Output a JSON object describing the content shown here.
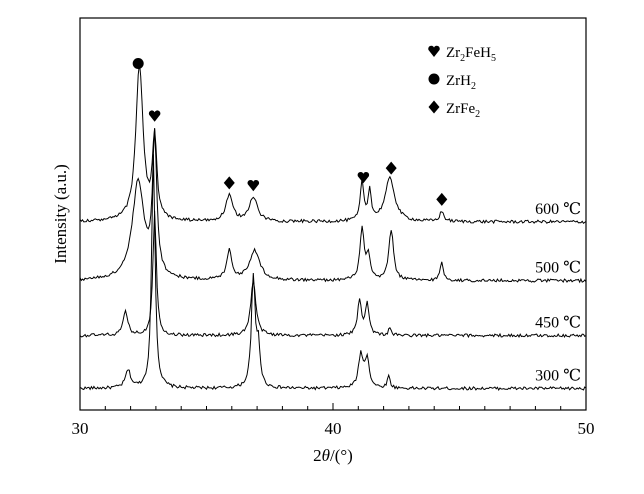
{
  "chart_data": {
    "type": "line",
    "title": "",
    "xlabel_parts": [
      "2",
      "θ",
      "/(°)"
    ],
    "ylabel": "Intensity (a.u.)",
    "xlim": [
      30,
      50
    ],
    "xticks": [
      30,
      40,
      50
    ],
    "grid": false,
    "legend": {
      "placement": "top-right",
      "entries": [
        {
          "marker": "heart",
          "label_parts": [
            "Zr",
            "2",
            "FeH",
            "5"
          ]
        },
        {
          "marker": "circle",
          "label_parts": [
            "ZrH",
            "2"
          ]
        },
        {
          "marker": "diamond",
          "label_parts": [
            "ZrFe",
            "2"
          ]
        }
      ]
    },
    "phase_peaks": {
      "ZrH2": [
        32.3
      ],
      "Zr2FeH5": [
        32.9,
        36.9,
        41.2
      ],
      "ZrFe2": [
        35.9,
        42.3,
        44.3
      ]
    },
    "series": [
      {
        "name": "300 ℃",
        "baseline": 0.055,
        "peaks": [
          {
            "x": 31.9,
            "h": 0.045,
            "w": 0.12
          },
          {
            "x": 32.9,
            "h": 0.6,
            "w": 0.08
          },
          {
            "x": 36.85,
            "h": 0.28,
            "w": 0.09
          },
          {
            "x": 37.05,
            "h": 0.1,
            "w": 0.08
          },
          {
            "x": 41.1,
            "h": 0.085,
            "w": 0.11
          },
          {
            "x": 41.35,
            "h": 0.075,
            "w": 0.1
          },
          {
            "x": 42.2,
            "h": 0.03,
            "w": 0.07
          }
        ]
      },
      {
        "name": "450 ℃",
        "baseline": 0.19,
        "peaks": [
          {
            "x": 31.8,
            "h": 0.06,
            "w": 0.11
          },
          {
            "x": 32.95,
            "h": 0.32,
            "w": 0.08
          },
          {
            "x": 36.85,
            "h": 0.14,
            "w": 0.12
          },
          {
            "x": 41.05,
            "h": 0.09,
            "w": 0.09
          },
          {
            "x": 41.35,
            "h": 0.08,
            "w": 0.09
          },
          {
            "x": 42.25,
            "h": 0.02,
            "w": 0.06
          }
        ]
      },
      {
        "name": "500 ℃",
        "baseline": 0.33,
        "peaks": [
          {
            "x": 32.3,
            "h": 0.25,
            "w": 0.28
          },
          {
            "x": 32.95,
            "h": 0.35,
            "w": 0.1
          },
          {
            "x": 35.9,
            "h": 0.075,
            "w": 0.12
          },
          {
            "x": 36.9,
            "h": 0.075,
            "w": 0.25
          },
          {
            "x": 41.15,
            "h": 0.13,
            "w": 0.1
          },
          {
            "x": 41.4,
            "h": 0.06,
            "w": 0.08
          },
          {
            "x": 42.3,
            "h": 0.13,
            "w": 0.11
          },
          {
            "x": 44.3,
            "h": 0.045,
            "w": 0.08
          }
        ]
      },
      {
        "name": "600 ℃",
        "baseline": 0.48,
        "peaks": [
          {
            "x": 32.35,
            "h": 0.4,
            "w": 0.17
          },
          {
            "x": 32.95,
            "h": 0.21,
            "w": 0.1
          },
          {
            "x": 35.9,
            "h": 0.065,
            "w": 0.16
          },
          {
            "x": 36.85,
            "h": 0.06,
            "w": 0.2
          },
          {
            "x": 41.15,
            "h": 0.1,
            "w": 0.08
          },
          {
            "x": 41.45,
            "h": 0.08,
            "w": 0.07
          },
          {
            "x": 42.25,
            "h": 0.11,
            "w": 0.23
          },
          {
            "x": 44.3,
            "h": 0.025,
            "w": 0.1
          }
        ]
      }
    ],
    "peak_markers": [
      {
        "marker": "circle",
        "x": 32.3
      },
      {
        "marker": "heart",
        "x": 32.95
      },
      {
        "marker": "diamond",
        "x": 35.9
      },
      {
        "marker": "heart",
        "x": 36.85
      },
      {
        "marker": "heart",
        "x": 41.2
      },
      {
        "marker": "diamond",
        "x": 42.3
      },
      {
        "marker": "diamond",
        "x": 44.3
      }
    ]
  }
}
